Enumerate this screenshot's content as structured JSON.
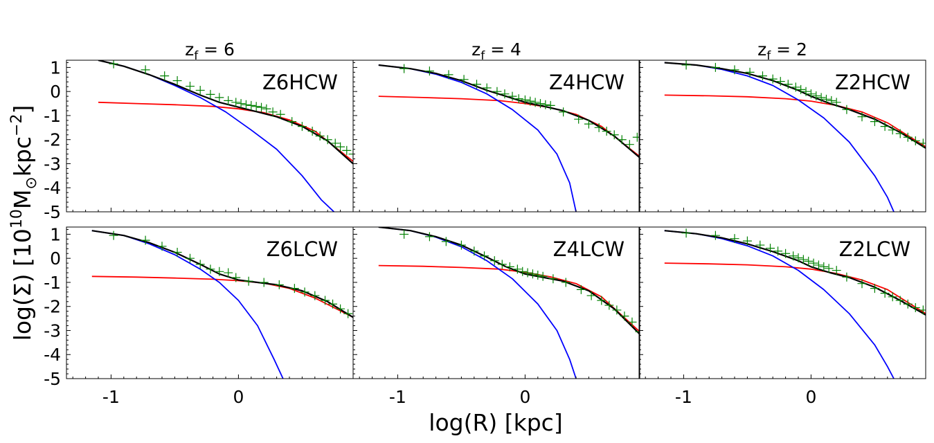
{
  "chart_data": {
    "type": "line",
    "description_layout": "grid",
    "rows": 2,
    "cols": 3,
    "column_titles": [
      {
        "base": "z",
        "sub": "f",
        "eq": " = 6"
      },
      {
        "base": "z",
        "sub": "f",
        "eq": " = 4"
      },
      {
        "base": "z",
        "sub": "f",
        "eq": " = 2"
      }
    ],
    "xlabel": "log(R) [kpc]",
    "ylabel": {
      "pre": "log(Σ) [10",
      "sup1": "10",
      "mid": "M",
      "sub": "⊙",
      "post": "kpc",
      "sup2": "−2",
      "end": "]"
    },
    "xlim": [
      -1.35,
      0.9
    ],
    "ylim": [
      -5,
      1.3
    ],
    "xticks": [
      -1,
      0
    ],
    "xtick_labels": [
      "-1",
      "0"
    ],
    "yticks": [
      1,
      0,
      -1,
      -2,
      -3,
      -4,
      -5
    ],
    "ytick_labels": [
      "1",
      "0",
      "-1",
      "-2",
      "-3",
      "-4",
      "-5"
    ],
    "series_colors": {
      "total": "#000000",
      "inner": "#0000ff",
      "outer": "#ff0000",
      "data": "#008000"
    },
    "panels": [
      {
        "name": "Z6HCW",
        "total": {
          "x": [
            -1.1,
            -0.9,
            -0.7,
            -0.5,
            -0.3,
            -0.15,
            0,
            0.15,
            0.3,
            0.5,
            0.7,
            0.9
          ],
          "y": [
            1.3,
            1.05,
            0.7,
            0.3,
            -0.15,
            -0.45,
            -0.65,
            -0.85,
            -1.05,
            -1.45,
            -2.05,
            -3.0
          ]
        },
        "inner": {
          "x": [
            -1.1,
            -0.9,
            -0.7,
            -0.5,
            -0.3,
            -0.1,
            0.1,
            0.3,
            0.5,
            0.65,
            0.75
          ],
          "y": [
            1.3,
            1.05,
            0.7,
            0.25,
            -0.25,
            -0.85,
            -1.6,
            -2.4,
            -3.5,
            -4.5,
            -5.0
          ]
        },
        "outer": {
          "x": [
            -1.1,
            -0.8,
            -0.5,
            -0.2,
            0,
            0.2,
            0.4,
            0.6,
            0.9
          ],
          "y": [
            -0.45,
            -0.5,
            -0.55,
            -0.62,
            -0.72,
            -0.88,
            -1.18,
            -1.65,
            -2.9
          ]
        },
        "data": {
          "x": [
            -0.98,
            -0.73,
            -0.58,
            -0.48,
            -0.38,
            -0.3,
            -0.22,
            -0.15,
            -0.08,
            -0.02,
            0.02,
            0.06,
            0.1,
            0.14,
            0.18,
            0.22,
            0.27,
            0.33,
            0.42,
            0.5,
            0.58,
            0.64,
            0.7,
            0.76,
            0.8,
            0.85,
            0.9
          ],
          "y": [
            1.15,
            0.9,
            0.65,
            0.45,
            0.22,
            0.05,
            -0.12,
            -0.25,
            -0.38,
            -0.45,
            -0.5,
            -0.55,
            -0.58,
            -0.62,
            -0.66,
            -0.72,
            -0.85,
            -0.95,
            -1.25,
            -1.45,
            -1.65,
            -1.85,
            -2.0,
            -2.15,
            -2.3,
            -2.45,
            -2.6
          ]
        }
      },
      {
        "name": "Z4HCW",
        "total": {
          "x": [
            -1.15,
            -0.9,
            -0.7,
            -0.5,
            -0.3,
            -0.15,
            0,
            0.15,
            0.3,
            0.5,
            0.7,
            0.9
          ],
          "y": [
            1.1,
            0.95,
            0.75,
            0.45,
            0.05,
            -0.2,
            -0.45,
            -0.62,
            -0.8,
            -1.2,
            -1.85,
            -2.75
          ]
        },
        "inner": {
          "x": [
            -1.15,
            -0.9,
            -0.7,
            -0.5,
            -0.3,
            -0.1,
            0.1,
            0.25,
            0.35,
            0.4
          ],
          "y": [
            1.1,
            0.95,
            0.72,
            0.38,
            -0.1,
            -0.75,
            -1.6,
            -2.6,
            -3.8,
            -5.0
          ]
        },
        "outer": {
          "x": [
            -1.15,
            -0.8,
            -0.5,
            -0.2,
            0,
            0.2,
            0.4,
            0.6,
            0.9
          ],
          "y": [
            -0.2,
            -0.25,
            -0.3,
            -0.38,
            -0.5,
            -0.67,
            -0.95,
            -1.45,
            -2.7
          ]
        },
        "data": {
          "x": [
            -0.95,
            -0.75,
            -0.6,
            -0.48,
            -0.38,
            -0.3,
            -0.22,
            -0.16,
            -0.1,
            -0.05,
            0,
            0.04,
            0.08,
            0.12,
            0.16,
            0.2,
            0.3,
            0.42,
            0.5,
            0.58,
            0.64,
            0.7,
            0.76,
            0.82,
            0.88
          ],
          "y": [
            0.95,
            0.85,
            0.7,
            0.5,
            0.3,
            0.15,
            0.0,
            -0.1,
            -0.2,
            -0.3,
            -0.35,
            -0.4,
            -0.45,
            -0.5,
            -0.55,
            -0.58,
            -0.85,
            -1.15,
            -1.35,
            -1.5,
            -1.65,
            -1.8,
            -2.0,
            -2.2,
            -1.9
          ]
        }
      },
      {
        "name": "Z2HCW",
        "total": {
          "x": [
            -1.15,
            -0.9,
            -0.7,
            -0.5,
            -0.3,
            -0.1,
            0,
            0.15,
            0.3,
            0.5,
            0.7,
            0.9
          ],
          "y": [
            1.2,
            1.1,
            0.95,
            0.75,
            0.45,
            0.05,
            -0.2,
            -0.5,
            -0.75,
            -1.15,
            -1.7,
            -2.35
          ]
        },
        "inner": {
          "x": [
            -1.15,
            -0.9,
            -0.7,
            -0.5,
            -0.3,
            -0.1,
            0.1,
            0.3,
            0.5,
            0.6,
            0.65
          ],
          "y": [
            1.2,
            1.1,
            0.92,
            0.65,
            0.25,
            -0.35,
            -1.1,
            -2.1,
            -3.5,
            -4.4,
            -5.0
          ]
        },
        "outer": {
          "x": [
            -1.15,
            -0.8,
            -0.5,
            -0.2,
            0,
            0.2,
            0.4,
            0.6,
            0.9
          ],
          "y": [
            -0.15,
            -0.18,
            -0.22,
            -0.3,
            -0.4,
            -0.58,
            -0.85,
            -1.3,
            -2.3
          ]
        },
        "data": {
          "x": [
            -0.98,
            -0.75,
            -0.6,
            -0.48,
            -0.38,
            -0.3,
            -0.24,
            -0.18,
            -0.12,
            -0.08,
            -0.04,
            0,
            0.04,
            0.08,
            0.12,
            0.16,
            0.2,
            0.28,
            0.4,
            0.5,
            0.58,
            0.64,
            0.7,
            0.76,
            0.82,
            0.88
          ],
          "y": [
            1.1,
            1.0,
            0.9,
            0.8,
            0.65,
            0.52,
            0.42,
            0.3,
            0.18,
            0.08,
            0.0,
            -0.1,
            -0.18,
            -0.25,
            -0.32,
            -0.38,
            -0.45,
            -0.75,
            -1.05,
            -1.25,
            -1.45,
            -1.6,
            -1.75,
            -1.9,
            -2.05,
            -2.15
          ]
        }
      },
      {
        "name": "Z6LCW",
        "total": {
          "x": [
            -1.15,
            -0.9,
            -0.7,
            -0.5,
            -0.3,
            -0.15,
            0,
            0.15,
            0.3,
            0.5,
            0.7,
            0.9
          ],
          "y": [
            1.15,
            0.95,
            0.65,
            0.25,
            -0.25,
            -0.65,
            -0.9,
            -1.0,
            -1.1,
            -1.35,
            -1.8,
            -2.45
          ]
        },
        "inner": {
          "x": [
            -1.15,
            -0.9,
            -0.7,
            -0.5,
            -0.3,
            -0.15,
            0,
            0.15,
            0.28,
            0.35
          ],
          "y": [
            1.15,
            0.95,
            0.6,
            0.15,
            -0.45,
            -1.0,
            -1.75,
            -2.8,
            -4.2,
            -5.0
          ]
        },
        "outer": {
          "x": [
            -1.15,
            -0.8,
            -0.5,
            -0.2,
            0,
            0.2,
            0.4,
            0.6,
            0.9
          ],
          "y": [
            -0.75,
            -0.78,
            -0.82,
            -0.87,
            -0.93,
            -1.03,
            -1.25,
            -1.65,
            -2.45
          ]
        },
        "data": {
          "x": [
            -0.98,
            -0.73,
            -0.6,
            -0.48,
            -0.38,
            -0.3,
            -0.22,
            -0.15,
            -0.08,
            -0.02,
            0.08,
            0.2,
            0.32,
            0.44,
            0.52,
            0.6,
            0.68,
            0.74,
            0.8,
            0.86
          ],
          "y": [
            0.95,
            0.75,
            0.5,
            0.25,
            0.0,
            -0.25,
            -0.45,
            -0.55,
            -0.6,
            -0.8,
            -0.95,
            -1.0,
            -1.1,
            -1.25,
            -1.4,
            -1.55,
            -1.75,
            -1.9,
            -2.1,
            -2.3
          ]
        }
      },
      {
        "name": "Z4LCW",
        "total": {
          "x": [
            -1.15,
            -0.9,
            -0.7,
            -0.5,
            -0.3,
            -0.15,
            0,
            0.15,
            0.3,
            0.5,
            0.7,
            0.9
          ],
          "y": [
            1.3,
            1.15,
            0.9,
            0.55,
            0.05,
            -0.35,
            -0.65,
            -0.8,
            -0.95,
            -1.35,
            -2.1,
            -3.15
          ]
        },
        "inner": {
          "x": [
            -1.15,
            -0.9,
            -0.7,
            -0.5,
            -0.3,
            -0.1,
            0.1,
            0.25,
            0.35,
            0.4
          ],
          "y": [
            1.3,
            1.15,
            0.88,
            0.48,
            -0.1,
            -0.85,
            -1.9,
            -3.0,
            -4.2,
            -5.0
          ]
        },
        "outer": {
          "x": [
            -1.15,
            -0.8,
            -0.5,
            -0.2,
            0,
            0.2,
            0.4,
            0.6,
            0.9
          ],
          "y": [
            -0.3,
            -0.33,
            -0.38,
            -0.45,
            -0.58,
            -0.77,
            -1.05,
            -1.6,
            -3.05
          ]
        },
        "data": {
          "x": [
            -0.95,
            -0.75,
            -0.62,
            -0.5,
            -0.4,
            -0.32,
            -0.24,
            -0.18,
            -0.12,
            -0.06,
            -0.02,
            0.02,
            0.06,
            0.1,
            0.14,
            0.22,
            0.32,
            0.44,
            0.52,
            0.6,
            0.66,
            0.72,
            0.78,
            0.84,
            0.9
          ],
          "y": [
            1.0,
            0.9,
            0.7,
            0.55,
            0.3,
            0.1,
            -0.1,
            -0.25,
            -0.35,
            -0.45,
            -0.55,
            -0.6,
            -0.65,
            -0.7,
            -0.75,
            -0.85,
            -1.0,
            -1.3,
            -1.55,
            -1.75,
            -1.95,
            -2.15,
            -2.4,
            -2.65,
            -3.05
          ]
        }
      },
      {
        "name": "Z2LCW",
        "total": {
          "x": [
            -1.15,
            -0.9,
            -0.7,
            -0.5,
            -0.3,
            -0.1,
            0,
            0.15,
            0.3,
            0.5,
            0.7,
            0.9
          ],
          "y": [
            1.15,
            1.02,
            0.85,
            0.6,
            0.28,
            -0.1,
            -0.35,
            -0.6,
            -0.8,
            -1.2,
            -1.75,
            -2.35
          ]
        },
        "inner": {
          "x": [
            -1.15,
            -0.9,
            -0.7,
            -0.5,
            -0.3,
            -0.1,
            0.1,
            0.3,
            0.5,
            0.6,
            0.65
          ],
          "y": [
            1.15,
            1.02,
            0.82,
            0.52,
            0.1,
            -0.5,
            -1.3,
            -2.3,
            -3.6,
            -4.5,
            -5.0
          ]
        },
        "outer": {
          "x": [
            -1.15,
            -0.8,
            -0.5,
            -0.2,
            0,
            0.2,
            0.4,
            0.6,
            0.9
          ],
          "y": [
            -0.2,
            -0.23,
            -0.27,
            -0.35,
            -0.45,
            -0.63,
            -0.9,
            -1.3,
            -2.3
          ]
        },
        "data": {
          "x": [
            -0.98,
            -0.75,
            -0.6,
            -0.5,
            -0.4,
            -0.32,
            -0.26,
            -0.2,
            -0.14,
            -0.1,
            -0.06,
            -0.02,
            0.02,
            0.06,
            0.1,
            0.14,
            0.2,
            0.28,
            0.4,
            0.5,
            0.58,
            0.64,
            0.7,
            0.76,
            0.82,
            0.88
          ],
          "y": [
            1.05,
            0.95,
            0.82,
            0.72,
            0.55,
            0.42,
            0.3,
            0.2,
            0.1,
            0.02,
            -0.05,
            -0.12,
            -0.2,
            -0.28,
            -0.35,
            -0.42,
            -0.5,
            -0.78,
            -1.05,
            -1.25,
            -1.45,
            -1.6,
            -1.75,
            -1.9,
            -2.05,
            -2.15
          ]
        }
      }
    ]
  }
}
